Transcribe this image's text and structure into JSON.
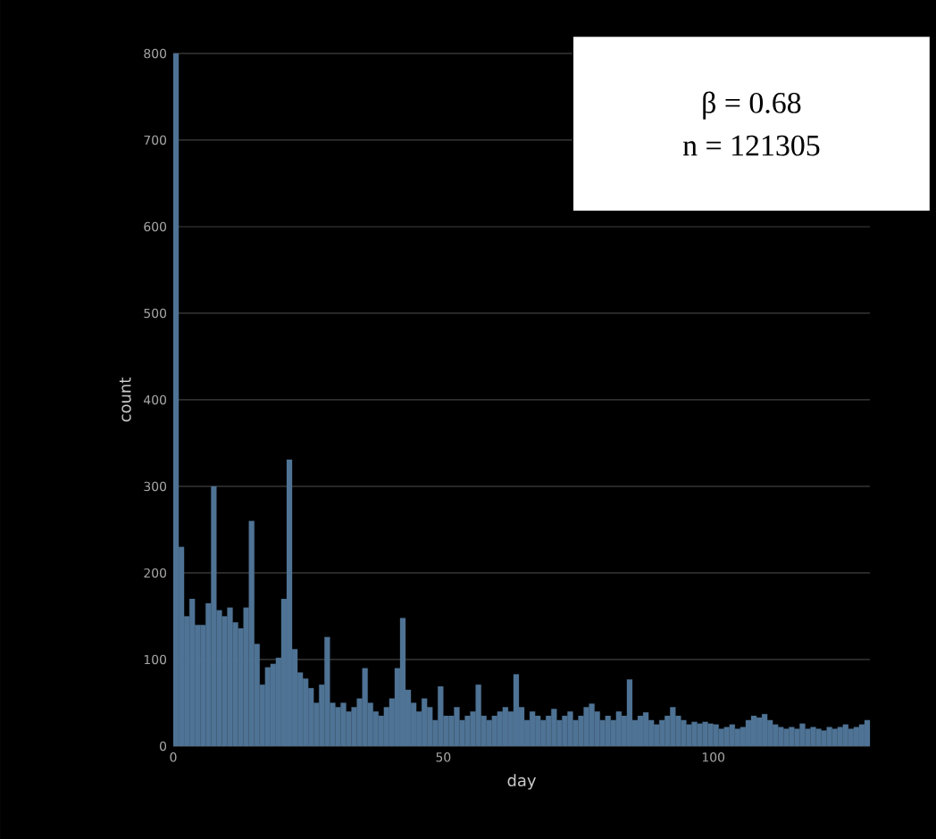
{
  "chart_data": {
    "type": "histogram",
    "xlabel": "day",
    "ylabel": "count",
    "bins": [
      0,
      1,
      2,
      3,
      4,
      5,
      6,
      7,
      8,
      9,
      10,
      11,
      12,
      13,
      14,
      15,
      16,
      17,
      18,
      19,
      20,
      21,
      22,
      23,
      24,
      25,
      26,
      27,
      28,
      29,
      30,
      31,
      32,
      33,
      34,
      35,
      36,
      37,
      38,
      39,
      40,
      41,
      42,
      43,
      44,
      45,
      46,
      47,
      48,
      49,
      50,
      51,
      52,
      53,
      54,
      55,
      56,
      57,
      58,
      59,
      60,
      61,
      62,
      63,
      64,
      65,
      66,
      67,
      68,
      69,
      70,
      71,
      72,
      73,
      74,
      75,
      76,
      77,
      78,
      79,
      80,
      81,
      82,
      83,
      84,
      85,
      86,
      87,
      88,
      89,
      90,
      91,
      92,
      93,
      94,
      95,
      96,
      97,
      98,
      99,
      100,
      101,
      102,
      103,
      104,
      105,
      106,
      107,
      108,
      109,
      110,
      111,
      112,
      113,
      114,
      115,
      116,
      117,
      118,
      119,
      120,
      121,
      122,
      123,
      124,
      125,
      126,
      127,
      128,
      129
    ],
    "values": [
      800,
      230,
      150,
      170,
      140,
      140,
      165,
      300,
      157,
      150,
      160,
      143,
      136,
      160,
      260,
      118,
      71,
      91,
      95,
      102,
      170,
      331,
      112,
      85,
      78,
      67,
      50,
      71,
      126,
      50,
      45,
      50,
      40,
      45,
      55,
      90,
      50,
      40,
      35,
      45,
      55,
      90,
      148,
      65,
      50,
      40,
      55,
      45,
      30,
      69,
      35,
      35,
      45,
      30,
      35,
      40,
      71,
      35,
      30,
      35,
      40,
      45,
      40,
      83,
      45,
      30,
      40,
      35,
      30,
      35,
      43,
      30,
      35,
      40,
      30,
      35,
      45,
      49,
      40,
      30,
      35,
      30,
      40,
      35,
      77,
      30,
      35,
      39,
      30,
      25,
      30,
      35,
      45,
      35,
      30,
      25,
      28,
      26,
      28,
      26,
      25,
      20,
      22,
      25,
      20,
      22,
      30,
      35,
      33,
      37,
      30,
      25,
      22,
      20,
      22,
      20,
      26,
      20,
      22,
      20,
      18,
      22,
      20,
      22,
      25,
      20,
      22,
      25,
      30
    ],
    "color": "#4f7394",
    "xlim": [
      0,
      129
    ],
    "ylim": [
      0,
      800
    ],
    "xticks": [
      0,
      50,
      100
    ],
    "yticks": [
      0,
      100,
      200,
      300,
      400,
      500,
      600,
      700,
      800
    ],
    "grid": "y",
    "annotations": [
      "β = 0.68",
      "n = 121305"
    ]
  }
}
